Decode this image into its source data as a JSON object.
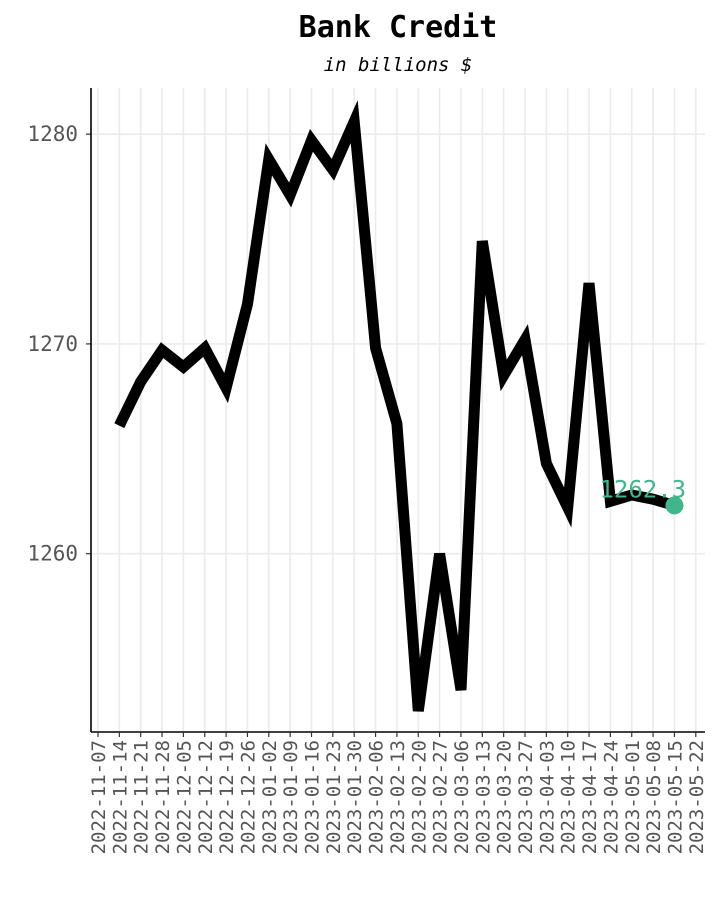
{
  "chart_data": {
    "type": "line",
    "title": "Bank Credit",
    "subtitle": "in billions $",
    "xlabel": "",
    "ylabel": "",
    "ylim": [
      1251.5,
      1282.2
    ],
    "yticks": [
      1260,
      1270,
      1280
    ],
    "grid": true,
    "x": [
      "2022-11-07",
      "2022-11-14",
      "2022-11-21",
      "2022-11-28",
      "2022-12-05",
      "2022-12-12",
      "2022-12-19",
      "2022-12-26",
      "2023-01-02",
      "2023-01-09",
      "2023-01-16",
      "2023-01-23",
      "2023-01-30",
      "2023-02-06",
      "2023-02-13",
      "2023-02-20",
      "2023-02-27",
      "2023-03-06",
      "2023-03-13",
      "2023-03-20",
      "2023-03-27",
      "2023-04-03",
      "2023-04-10",
      "2023-04-17",
      "2023-04-24",
      "2023-05-01",
      "2023-05-08",
      "2023-05-15",
      "2023-05-22"
    ],
    "series": [
      {
        "values": [
          null,
          1266.1,
          1268.2,
          1269.7,
          1268.9,
          1269.8,
          1267.9,
          1271.9,
          1278.8,
          1277.1,
          1279.7,
          1278.3,
          1280.6,
          1269.8,
          1266.2,
          1252.5,
          1260.0,
          1253.5,
          1274.9,
          1268.5,
          1270.2,
          1264.3,
          1262.2,
          1272.9,
          1262.5,
          1262.8,
          1262.6,
          1262.3,
          null
        ],
        "color": "#000000"
      }
    ],
    "last_point": {
      "date": "2023-05-15",
      "value": 1262.3,
      "label": "1262.3",
      "color": "#3fb68b"
    }
  }
}
